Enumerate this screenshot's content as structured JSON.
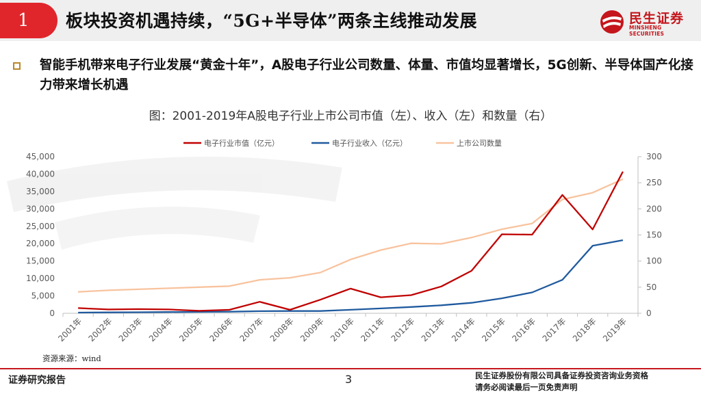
{
  "header": {
    "section_number": "1",
    "title": "板块投资机遇持续，“5G+半导体”两条主线推动发展",
    "logo_cn": "民生证券",
    "logo_en": "MINSHENG SECURITIES"
  },
  "bullet": {
    "text": "智能手机带来电子行业发展“黄金十年”，A股电子行业公司数量、体量、市值均显著增长，5G创新、半导体国产化接力带来增长机遇"
  },
  "figure_title": "图：2001-2019年A股电子行业上市公司市值（左）、收入（左）和数量（右）",
  "source": "资源来源：wind",
  "footer": {
    "left": "证券研究报告",
    "page": "3",
    "right_line1": "民生证券股份有限公司具备证券投资咨询业务资格",
    "right_line2": "请务必阅读最后一页免责声明"
  },
  "colors": {
    "accent": "#e0262b",
    "market_cap": "#c00000",
    "revenue": "#1f5a9e",
    "count": "#f8c39e"
  },
  "chart_data": {
    "type": "line",
    "title": "2001-2019年A股电子行业上市公司市值（左）、收入（左）和数量（右）",
    "categories": [
      "2001年",
      "2002年",
      "2003年",
      "2004年",
      "2005年",
      "2006年",
      "2007年",
      "2008年",
      "2009年",
      "2010年",
      "2011年",
      "2012年",
      "2013年",
      "2014年",
      "2015年",
      "2016年",
      "2017年",
      "2018年",
      "2019年"
    ],
    "y_left": {
      "min": 0,
      "max": 45000,
      "ticks": [
        "0",
        "5,000",
        "10,000",
        "15,000",
        "20,000",
        "25,000",
        "30,000",
        "35,000",
        "40,000",
        "45,000"
      ]
    },
    "y_right": {
      "min": 0,
      "max": 300,
      "ticks": [
        "0",
        "50",
        "100",
        "150",
        "200",
        "250",
        "300"
      ]
    },
    "legend_position": "top",
    "series": [
      {
        "name": "电子行业市值（亿元）",
        "axis": "left",
        "color": "#c00000",
        "values": [
          1500,
          1100,
          1200,
          1100,
          700,
          1000,
          3300,
          1000,
          3900,
          7100,
          4600,
          5200,
          7700,
          12200,
          22700,
          22600,
          34000,
          24100,
          40700
        ]
      },
      {
        "name": "电子行业收入（亿元）",
        "axis": "left",
        "color": "#1f5a9e",
        "values": [
          200,
          250,
          300,
          350,
          400,
          450,
          600,
          650,
          650,
          1000,
          1400,
          1800,
          2300,
          3000,
          4300,
          6000,
          9600,
          19400,
          21000
        ]
      },
      {
        "name": "上市公司数量",
        "axis": "right",
        "color": "#f8c39e",
        "values": [
          41,
          44,
          46,
          48,
          50,
          52,
          64,
          68,
          78,
          103,
          121,
          134,
          133,
          145,
          161,
          172,
          218,
          231,
          257
        ]
      }
    ]
  }
}
